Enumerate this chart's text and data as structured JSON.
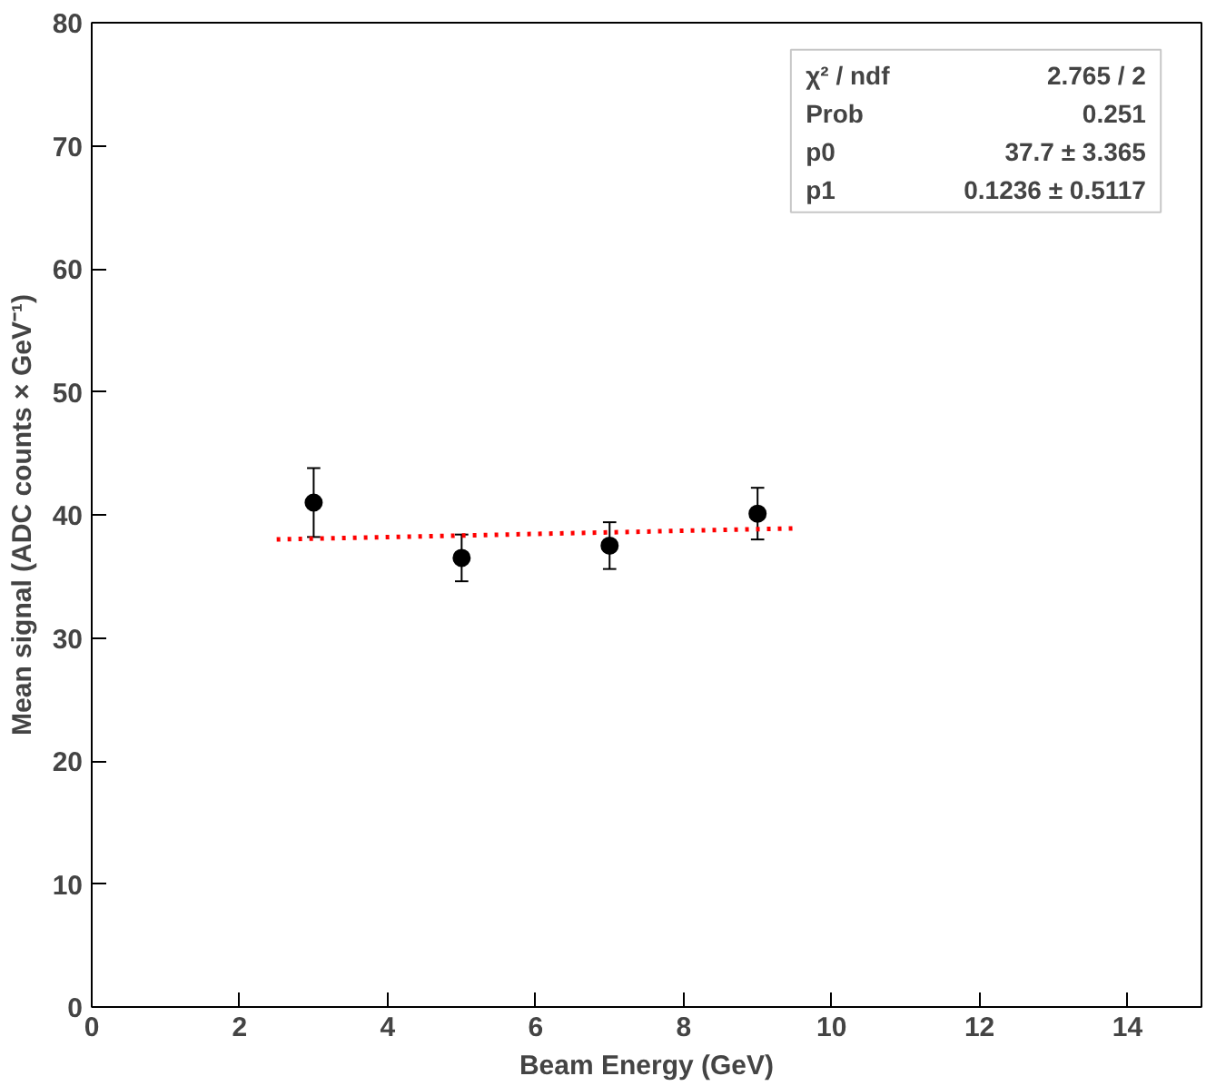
{
  "chart_data": {
    "type": "scatter",
    "xlabel": "Beam Energy (GeV)",
    "ylabel": "Mean signal (ADC counts × GeV⁻¹)",
    "xlim": [
      0,
      15
    ],
    "ylim": [
      0,
      80
    ],
    "xticks": [
      0,
      2,
      4,
      6,
      8,
      10,
      12,
      14
    ],
    "yticks": [
      0,
      10,
      20,
      30,
      40,
      50,
      60,
      70,
      80
    ],
    "grid": false,
    "marker": "circle",
    "series": [
      {
        "color": "#000000",
        "x": [
          3,
          5,
          7,
          9
        ],
        "values": [
          41.0,
          36.5,
          37.5,
          40.1
        ],
        "errors": [
          2.8,
          1.9,
          1.9,
          2.1
        ]
      },
      {
        "type": "line",
        "color": "#ff0000",
        "line_style": "dotted",
        "marker": "none",
        "x": [
          2.5,
          9.5
        ],
        "values": [
          38.0,
          38.9
        ]
      }
    ],
    "annotations": [
      "χ² / ndf",
      "2.765 / 2",
      "Prob",
      "0.251",
      "p0",
      "37.7 ± 3.365",
      "p1",
      "0.1236 ± 0.5117"
    ]
  }
}
